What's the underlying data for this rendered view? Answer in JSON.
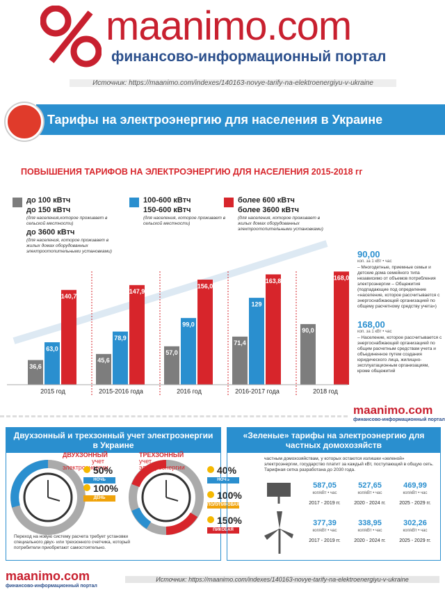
{
  "header": {
    "logo": "maanimo.com",
    "tagline": "финансово-информационный портал",
    "source": "Источник:  https://maanimo.com/indexes/140163-novye-tarify-na-elektroenergiyu-v-ukraine",
    "banner": "Тарифы на электроэнергию для населения в Украине"
  },
  "chart_data": {
    "type": "bar",
    "title": "ПОВЫШЕНИЯ ТАРИФОВ НА ЭЛЕКТРОЭНЕРГИЮ ДЛЯ НАСЕЛЕНИЯ 2015-2018 гг",
    "categories": [
      "2015 год",
      "2015-2016 года",
      "2016 год",
      "2016-2017 года",
      "2018 год"
    ],
    "ylim": [
      0,
      220
    ],
    "series": [
      {
        "name": "до 100 кВтч",
        "color": "#7d7d7d",
        "values": [
          36.6,
          45.6,
          57.0,
          71.4,
          90.0
        ],
        "value_labels": [
          "36,6",
          "45,6",
          "57,0",
          "71,4",
          "90,0"
        ],
        "notes": [
          "до 150 кВтч",
          "(для населения,которое проживает в сельской местности)",
          "до 3600 кВтч",
          "(для населения, которое проживает в жилых домах оборудованных электроотопительными установками)"
        ]
      },
      {
        "name": "100-600 кВтч",
        "color": "#2a8fcf",
        "values": [
          63.0,
          78.9,
          99.0,
          129,
          null
        ],
        "value_labels": [
          "63,0",
          "78,9",
          "99,0",
          "129",
          null
        ],
        "notes": [
          "150-600 кВтч",
          "(для населения, которое проживает в сельской местности)"
        ]
      },
      {
        "name": "более 600 кВтч",
        "color": "#d7252b",
        "values": [
          140.7,
          147.9,
          156.0,
          163.8,
          168.0
        ],
        "value_labels": [
          "140,7",
          "147,9",
          "156,0",
          "163,8",
          "168,0"
        ],
        "notes": [
          "более 3600 кВтч",
          "(для населения, которое проживает в жилых домах оборудованных электроотопительными установками)"
        ]
      }
    ],
    "side_notes": [
      {
        "value": "90,00",
        "unit": "коп. за 1 кВт • час",
        "text": "– Многодетные, приемные семьи и детские дома семейного типа независимо от объемов потребления электроэнергии – Общежития (подпадающие под определение «население, которое рассчитывается с энергоснабжающей организацией по общему расчетному средству учета»)"
      },
      {
        "value": "168,00",
        "unit": "коп. за 1 кВт • час",
        "text": "– Население, которое рассчитывается с энергоснабжающей организацией по общим расчетным средствам учета и объединенное путем создания юридического лица, жилищно-эксплуатационным организациям, кроме общежитий"
      }
    ]
  },
  "mid_logo": {
    "logo": "maanimo.com",
    "tagline": "финансово-информационный портал"
  },
  "zones": {
    "title": "Двухзонный и трехзонный учет электроэнергии в Украине",
    "two": {
      "title": "ДВУХЗОННЫЙ",
      "subtitle": "учет электроэнергии",
      "rates": [
        {
          "value": "50%",
          "label": "НОЧЬ"
        },
        {
          "value": "100%",
          "label": "ДЕНЬ"
        }
      ]
    },
    "three": {
      "title": "ТРЕХЗОННЫЙ",
      "subtitle": "учет электроэнергии",
      "rates": [
        {
          "value": "40%",
          "label": "НОЧЬ"
        },
        {
          "value": "100%",
          "label": "ПОЛУПИКОВАЯ"
        },
        {
          "value": "150%",
          "label": "ПИКОВАЯ"
        }
      ]
    },
    "note": "Переход на новую систему расчета требует установки специального двух- или трехзонного счетчика, который потребители приобретают самостоятельно."
  },
  "green": {
    "title": "«Зеленые» тарифы на электроэнергию для частных домохозяйств",
    "note": "частным домохозяйствам, у которых остаются излишки «зеленой» электроэнергии, государство платит за каждый кВт, поступающий в общую сеть. Тарифная сетка разработана до 2030 года.",
    "unit": "коп/кВт • час",
    "periods": [
      "2017 - 2019 гг.",
      "2020 - 2024 гг.",
      "2025 - 2029 гг."
    ],
    "solar": [
      "587,05",
      "527,65",
      "469,99"
    ],
    "wind": [
      "377,39",
      "338,95",
      "302,26"
    ]
  },
  "footer": {
    "logo": "maanimo.com",
    "tagline": "финансово-информационный портал",
    "source": "Источник:  https://maanimo.com/indexes/140163-novye-tarify-na-elektroenergiyu-v-ukraine"
  }
}
